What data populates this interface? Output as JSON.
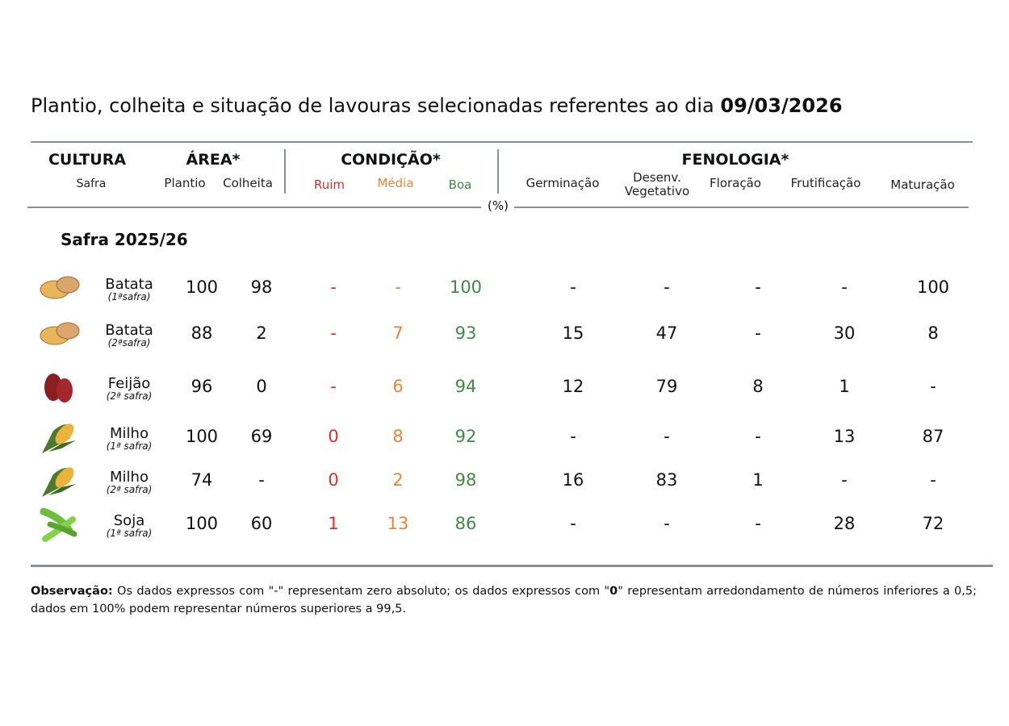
{
  "title": {
    "text": "Plantio, colheita e situação de lavouras selecionadas referentes ao dia",
    "date": "09/03/2026"
  },
  "header": {
    "cultura": "CULTURA",
    "safra": "Safra",
    "area": "ÁREA*",
    "plantio": "Plantio",
    "colheita": "Colheita",
    "condicao": "CONDIÇÃO*",
    "ruim": "Ruim",
    "media": "Média",
    "boa": "Boa",
    "fenologia": "FENOLOGIA*",
    "germinacao": "Germinação",
    "desenv1": "Desenv.",
    "desenv2": "Vegetativo",
    "floracao": "Floração",
    "frutificacao": "Frutificação",
    "maturacao": "Maturação",
    "unit": "(%)"
  },
  "section": "Safra 2025/26",
  "colors": {
    "ruim": "#d9302c",
    "media": "#e8843c",
    "boa": "#3f8a45"
  },
  "rows": [
    {
      "icon": "potato-icon",
      "name": "Batata",
      "safra": "(1ªsafra)",
      "plantio": "100",
      "colheita": "98",
      "ruim": "-",
      "media": "-",
      "boa": "100",
      "germ": "-",
      "desenv": "-",
      "flor": "-",
      "frut": "-",
      "mat": "100"
    },
    {
      "icon": "potato-icon",
      "name": "Batata",
      "safra": "(2ªsafra)",
      "plantio": "88",
      "colheita": "2",
      "ruim": "-",
      "media": "7",
      "boa": "93",
      "germ": "15",
      "desenv": "47",
      "flor": "-",
      "frut": "30",
      "mat": "8"
    },
    {
      "icon": "bean-icon",
      "name": "Feijão",
      "safra": "(2ª safra)",
      "plantio": "96",
      "colheita": "0",
      "ruim": "-",
      "media": "6",
      "boa": "94",
      "germ": "12",
      "desenv": "79",
      "flor": "8",
      "frut": "1",
      "mat": "-"
    },
    {
      "icon": "corn-icon",
      "name": "Milho",
      "safra": "(1ª safra)",
      "plantio": "100",
      "colheita": "69",
      "ruim": "0",
      "media": "8",
      "boa": "92",
      "germ": "-",
      "desenv": "-",
      "flor": "-",
      "frut": "13",
      "mat": "87"
    },
    {
      "icon": "corn-icon",
      "name": "Milho",
      "safra": "(2ª safra)",
      "plantio": "74",
      "colheita": "-",
      "ruim": "0",
      "media": "2",
      "boa": "98",
      "germ": "16",
      "desenv": "83",
      "flor": "1",
      "frut": "-",
      "mat": "-"
    },
    {
      "icon": "soybean-icon",
      "name": "Soja",
      "safra": "(1ª safra)",
      "plantio": "100",
      "colheita": "60",
      "ruim": "1",
      "media": "13",
      "boa": "86",
      "germ": "-",
      "desenv": "-",
      "flor": "-",
      "frut": "28",
      "mat": "72"
    }
  ],
  "note": {
    "label": "Observação:",
    "text1": " Os dados expressos com \"-\" representam zero absoluto; os dados expressos com \"",
    "bold0": "0",
    "text2": "\" representam arredondamento de números inferiores a 0,5; dados em 100% podem representar números superiores a 99,5."
  }
}
